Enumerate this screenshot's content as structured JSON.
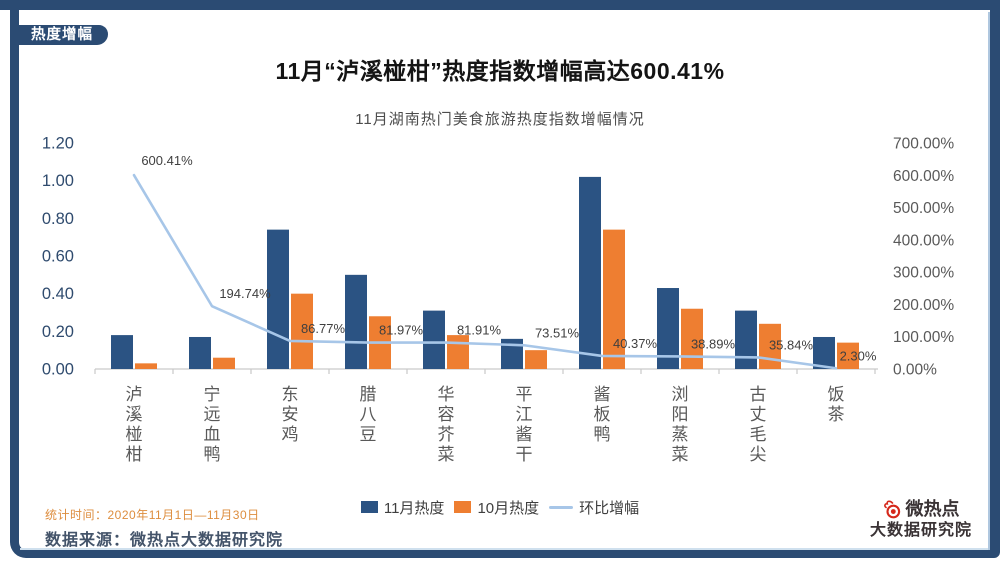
{
  "badge": {
    "label": "热度增幅"
  },
  "header": {
    "title": "11月“泸溪椪柑”热度指数增幅高达600.41%",
    "subtitle": "11月湖南热门美食旅游热度指数增幅情况"
  },
  "chart_data": {
    "type": "bar",
    "subtype": "grouped-bars-with-secondary-axis-line",
    "title": "11月湖南热门美食旅游热度指数增幅情况",
    "categories": [
      "泸溪椪柑",
      "宁远血鸭",
      "东安鸡",
      "腊八豆",
      "华容芥菜",
      "平江酱干",
      "酱板鸭",
      "浏阳蒸菜",
      "古丈毛尖",
      "饭茶"
    ],
    "series": [
      {
        "name": "11月热度",
        "type": "bar",
        "axis": "left",
        "color": "#2B5383",
        "values": [
          0.18,
          0.17,
          0.74,
          0.5,
          0.31,
          0.16,
          1.02,
          0.43,
          0.31,
          0.17
        ]
      },
      {
        "name": "10月热度",
        "type": "bar",
        "axis": "left",
        "color": "#EE7E31",
        "values": [
          0.03,
          0.06,
          0.4,
          0.28,
          0.18,
          0.1,
          0.74,
          0.32,
          0.24,
          0.14
        ]
      },
      {
        "name": "环比增幅",
        "type": "line",
        "axis": "right",
        "color": "#A7C6E8",
        "values": [
          600.41,
          194.74,
          86.77,
          81.97,
          81.91,
          73.51,
          40.37,
          38.89,
          35.84,
          2.3
        ],
        "point_labels": [
          "600.41%",
          "194.74%",
          "86.77%",
          "81.97%",
          "81.91%",
          "73.51%",
          "40.37%",
          "38.89%",
          "35.84%",
          "2.30%"
        ]
      }
    ],
    "left_axis": {
      "min": 0,
      "max": 1.2,
      "step": 0.2,
      "tick_labels": [
        "0.00",
        "0.20",
        "0.40",
        "0.60",
        "0.80",
        "1.00",
        "1.20"
      ],
      "color": "#2F4B6E"
    },
    "right_axis": {
      "min": 0,
      "max": 700,
      "step": 100,
      "tick_labels": [
        "0.00%",
        "100.00%",
        "200.00%",
        "300.00%",
        "400.00%",
        "500.00%",
        "600.00%",
        "700.00%"
      ],
      "color": "#595959"
    },
    "grid": false,
    "legend_position": "bottom"
  },
  "legend": {
    "items": [
      {
        "label": "11月热度",
        "color": "#2B5383",
        "marker": "square"
      },
      {
        "label": "10月热度",
        "color": "#EE7E31",
        "marker": "square"
      },
      {
        "label": "环比增幅",
        "color": "#A7C6E8",
        "marker": "line"
      }
    ]
  },
  "footer": {
    "stat_time": "统计时间：2020年11月1日—11月30日",
    "data_source": "数据来源：微热点大数据研究院"
  },
  "brand": {
    "line1": "微热点",
    "line2": "大数据研究院"
  },
  "colors": {
    "frame": "#2B4B73",
    "bar_nov": "#2B5383",
    "bar_oct": "#EE7E31",
    "growth_line": "#A7C6E8",
    "stat_time_text": "#DD8D3E",
    "data_source_text": "#44546A",
    "brand_red": "#D5281B",
    "axis_left_label": "#2F4B6E",
    "axis_right_label": "#595959",
    "data_label": "#3F3F3F"
  }
}
